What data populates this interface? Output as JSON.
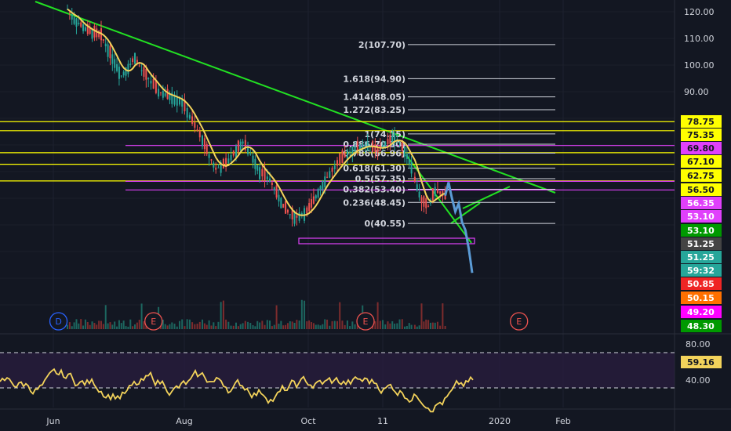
{
  "chart_data": {
    "type": "line",
    "main_price_ticks": [
      "120.00",
      "110.00",
      "100.00",
      "90.00"
    ],
    "fib_levels": [
      {
        "label": "2(107.70)",
        "price": 107.7
      },
      {
        "label": "1.618(94.90)",
        "price": 94.9
      },
      {
        "label": "1.414(88.05)",
        "price": 88.05
      },
      {
        "label": "1.272(83.25)",
        "price": 83.25
      },
      {
        "label": "1(74.15)",
        "price": 74.15
      },
      {
        "label": "0.886(70.30)",
        "price": 70.3
      },
      {
        "label": "0.786(66.96)",
        "price": 66.96
      },
      {
        "label": "0.618(61.30)",
        "price": 61.3
      },
      {
        "label": "0.5(57.35)",
        "price": 57.35
      },
      {
        "label": "0.382(53.40)",
        "price": 53.4
      },
      {
        "label": "0.236(48.45)",
        "price": 48.45
      },
      {
        "label": "0(40.55)",
        "price": 40.55
      }
    ],
    "horizontal_levels": [
      {
        "price": 78.75,
        "color": "#ffff00"
      },
      {
        "price": 75.35,
        "color": "#ffff00"
      },
      {
        "price": 69.8,
        "color": "#e040fb"
      },
      {
        "price": 67.1,
        "color": "#ffff00"
      },
      {
        "price": 62.75,
        "color": "#ffff00"
      },
      {
        "price": 56.5,
        "color": "#ffff00"
      },
      {
        "price": 56.35,
        "color": "#e040fb"
      },
      {
        "price": 53.1,
        "color": "#e040fb"
      }
    ],
    "price_badges": [
      {
        "text": "78.75",
        "bg": "#ffff00",
        "fg": "#131722"
      },
      {
        "text": "75.35",
        "bg": "#ffff00",
        "fg": "#131722"
      },
      {
        "text": "69.80",
        "bg": "#e040fb",
        "fg": "#131722"
      },
      {
        "text": "67.10",
        "bg": "#ffff00",
        "fg": "#131722"
      },
      {
        "text": "62.75",
        "bg": "#ffff00",
        "fg": "#131722"
      },
      {
        "text": "56.50",
        "bg": "#ffff00",
        "fg": "#131722"
      },
      {
        "text": "56.35",
        "bg": "#e040fb",
        "fg": "#ffffff"
      },
      {
        "text": "53.10",
        "bg": "#e040fb",
        "fg": "#ffffff"
      },
      {
        "text": "53.10",
        "bg": "#009900",
        "fg": "#ffffff"
      },
      {
        "text": "51.25",
        "bg": "#444444",
        "fg": "#ffffff"
      },
      {
        "text": "51.25",
        "bg": "#26a69a",
        "fg": "#ffffff"
      },
      {
        "text": "59:32",
        "bg": "#26a69a",
        "fg": "#ffffff"
      },
      {
        "text": "50.85",
        "bg": "#ef2525",
        "fg": "#ffffff"
      },
      {
        "text": "50.15",
        "bg": "#ff7000",
        "fg": "#ffffff"
      },
      {
        "text": "49.20",
        "bg": "#ff00ff",
        "fg": "#ffffff"
      },
      {
        "text": "48.30",
        "bg": "#009900",
        "fg": "#ffffff"
      }
    ],
    "oscillator_ticks": [
      "80.00",
      "40.00"
    ],
    "oscillator_value": "59.16",
    "x_ticks": [
      "Jun",
      "Aug",
      "Oct",
      "11",
      "2020",
      "Feb"
    ],
    "event_markers": [
      {
        "label": "D",
        "color": "#2962ff",
        "position": 0.08
      },
      {
        "label": "E",
        "color": "#ef5350",
        "position": 0.21
      },
      {
        "label": "E",
        "color": "#ef5350",
        "position": 0.5
      },
      {
        "label": "E",
        "color": "#ef5350",
        "position": 0.71
      }
    ],
    "price_series_anchors": [
      [
        0.1,
        121
      ],
      [
        0.11,
        117
      ],
      [
        0.13,
        113
      ],
      [
        0.15,
        111
      ],
      [
        0.17,
        101
      ],
      [
        0.18,
        96
      ],
      [
        0.19,
        99
      ],
      [
        0.2,
        103
      ],
      [
        0.21,
        98
      ],
      [
        0.22,
        95
      ],
      [
        0.235,
        90
      ],
      [
        0.245,
        89
      ],
      [
        0.255,
        88
      ],
      [
        0.27,
        86
      ],
      [
        0.285,
        79
      ],
      [
        0.3,
        72
      ],
      [
        0.31,
        66
      ],
      [
        0.32,
        61
      ],
      [
        0.335,
        63
      ],
      [
        0.35,
        68
      ],
      [
        0.36,
        71
      ],
      [
        0.375,
        65
      ],
      [
        0.385,
        60
      ],
      [
        0.4,
        57
      ],
      [
        0.41,
        52
      ],
      [
        0.42,
        47
      ],
      [
        0.43,
        44
      ],
      [
        0.44,
        43
      ],
      [
        0.455,
        45
      ],
      [
        0.465,
        49
      ],
      [
        0.475,
        54
      ],
      [
        0.485,
        58
      ],
      [
        0.5,
        63
      ],
      [
        0.515,
        67
      ],
      [
        0.53,
        69
      ],
      [
        0.545,
        70
      ],
      [
        0.56,
        68
      ],
      [
        0.575,
        71
      ],
      [
        0.585,
        73
      ],
      [
        0.6,
        68
      ],
      [
        0.61,
        62
      ],
      [
        0.615,
        57
      ],
      [
        0.625,
        49
      ],
      [
        0.635,
        47
      ],
      [
        0.645,
        53
      ],
      [
        0.66,
        51
      ]
    ],
    "projection_anchors": [
      [
        0.66,
        51
      ],
      [
        0.665,
        56
      ],
      [
        0.67,
        50
      ],
      [
        0.675,
        45
      ],
      [
        0.68,
        48
      ],
      [
        0.685,
        41
      ],
      [
        0.69,
        38
      ],
      [
        0.695,
        31
      ],
      [
        0.7,
        22
      ]
    ]
  }
}
